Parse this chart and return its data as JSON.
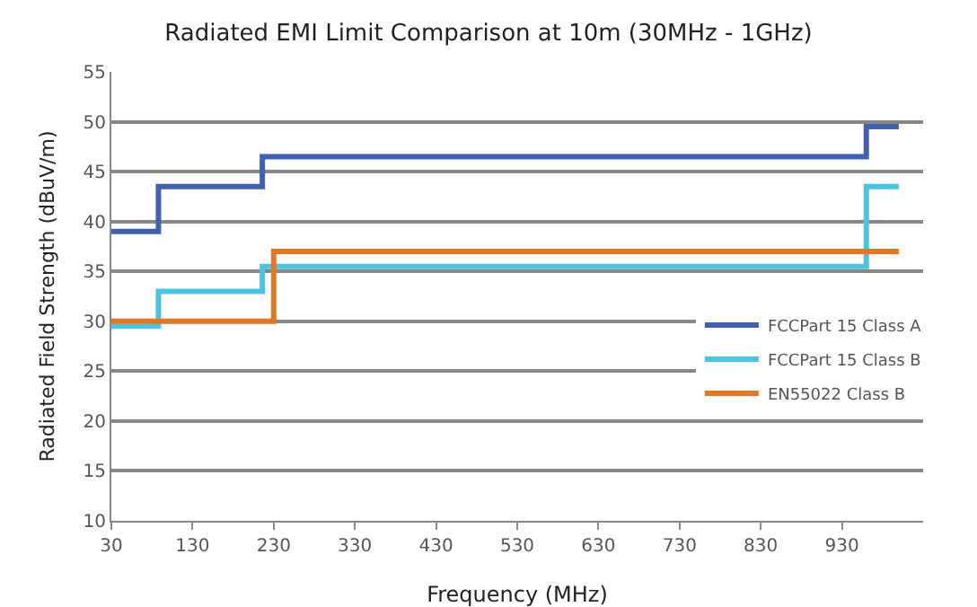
{
  "chart_data": {
    "type": "step",
    "title": "Radiated EMI Limit Comparison at 10m (30MHz - 1GHz)",
    "xlabel": "Frequency (MHz)",
    "ylabel": "Radiated Field Strength (dBuV/m)",
    "xlim": [
      30,
      1030
    ],
    "xticks": [
      30,
      130,
      230,
      330,
      430,
      530,
      630,
      730,
      830,
      930
    ],
    "ylim": [
      10,
      55
    ],
    "yticks": [
      10,
      15,
      20,
      25,
      30,
      35,
      40,
      45,
      50,
      55
    ],
    "grid": "y",
    "legend": "right",
    "line_style": "solid",
    "marker": "none",
    "series": [
      {
        "name": "FCCPart 15 Class A",
        "color": "#4060b0",
        "x": [
          30,
          88,
          216,
          960,
          1000
        ],
        "values": [
          39,
          43.5,
          46.5,
          49.5,
          49.5
        ]
      },
      {
        "name": "FCCPart 15 Class B",
        "color": "#4cc4e0",
        "x": [
          30,
          88,
          216,
          960,
          1000
        ],
        "values": [
          29.5,
          33,
          35.5,
          43.5,
          43.5
        ]
      },
      {
        "name": "EN55022 Class B",
        "color": "#e07828",
        "x": [
          30,
          230,
          1000
        ],
        "values": [
          30,
          37,
          37
        ]
      }
    ]
  }
}
